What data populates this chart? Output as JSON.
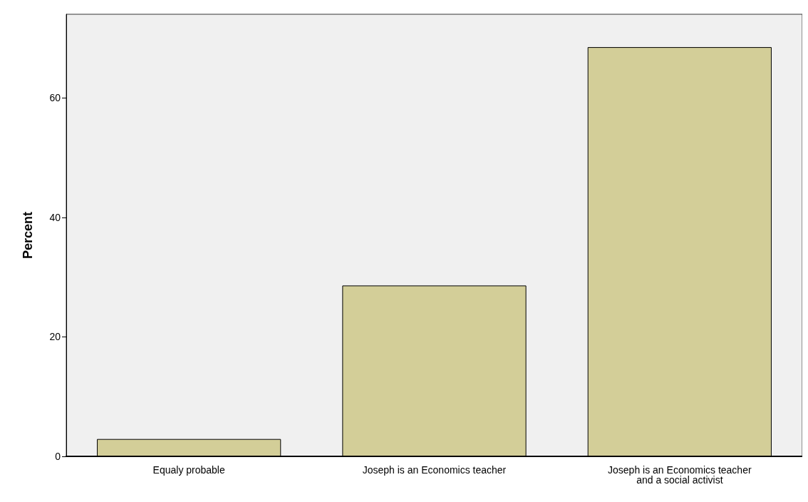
{
  "chart_data": {
    "type": "bar",
    "ylabel": "Percent",
    "categories": [
      "Equaly probable",
      "Joseph is an Economics teacher",
      "Joseph is an Economics teacher\nand a social activist"
    ],
    "values": [
      2.9,
      28.6,
      68.5
    ],
    "color": "#d3ce98",
    "ylim": [
      0,
      74
    ],
    "yticks": [
      0,
      20,
      40,
      60
    ],
    "grid": false
  }
}
